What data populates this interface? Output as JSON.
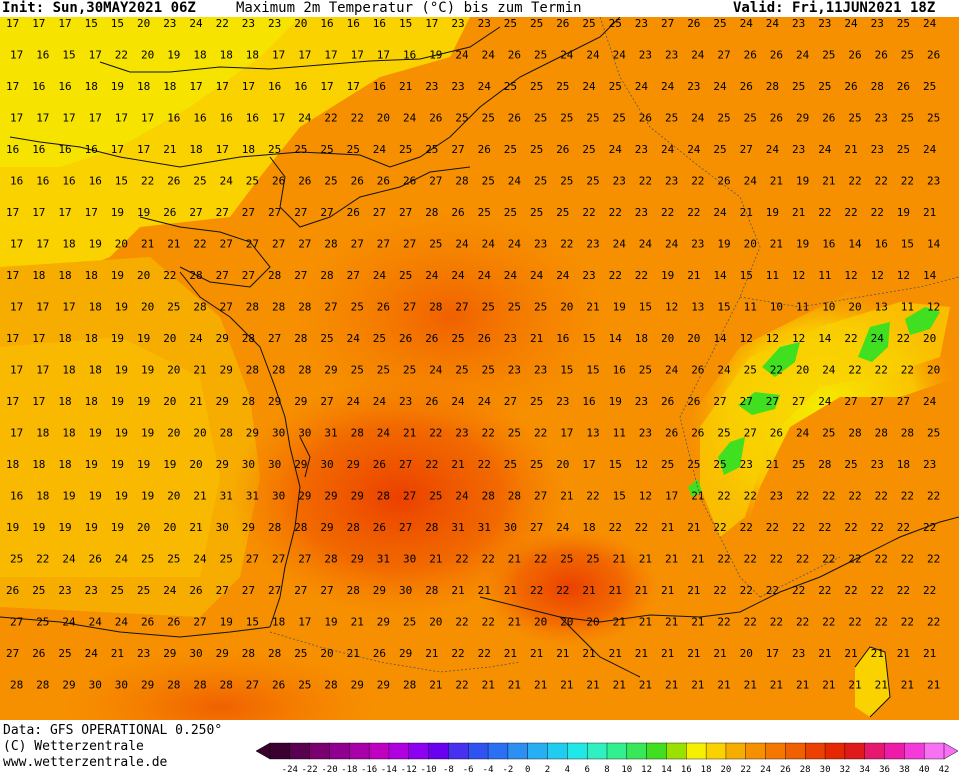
{
  "header": {
    "init": "Init: Sun,30MAY2021 06Z",
    "title": "Maximum 2m Temperatur (°C) bis zum Termin",
    "valid": "Valid: Fri,11JUN2021 18Z"
  },
  "footer": {
    "source": "Data: GFS OPERATIONAL 0.250°",
    "copyright": "(C) Wetterzentrale",
    "url": "www.wetterzentrale.de"
  },
  "legend": {
    "ticks": [
      "-24",
      "-22",
      "-20",
      "-18",
      "-16",
      "-14",
      "-12",
      "-10",
      "-8",
      "-6",
      "-4",
      "-2",
      "0",
      "2",
      "4",
      "6",
      "8",
      "10",
      "12",
      "14",
      "16",
      "18",
      "20",
      "22",
      "24",
      "26",
      "28",
      "30",
      "32",
      "34",
      "36",
      "38",
      "40",
      "42"
    ],
    "colors": [
      "#3a0030",
      "#5a0050",
      "#7a0070",
      "#8f0090",
      "#a800a8",
      "#c000c0",
      "#b000e0",
      "#8e00f0",
      "#6a00f0",
      "#4830f0",
      "#2f52f0",
      "#2a70f2",
      "#2c8ff2",
      "#28aef2",
      "#20ccf0",
      "#20e8e8",
      "#2ef0c0",
      "#30f090",
      "#38e858",
      "#40e020",
      "#9ae000",
      "#f4f000",
      "#fad200",
      "#f7ac00",
      "#f79000",
      "#f47800",
      "#f06000",
      "#eb4000",
      "#e62800",
      "#e01a1a",
      "#e6186e",
      "#ee1aa8",
      "#f43ad8",
      "#f870f4"
    ]
  },
  "map": {
    "rows": [
      [
        "17",
        "17",
        "17",
        "15",
        "15",
        "20",
        "23",
        "24",
        "22",
        "23",
        "23",
        "20",
        "16",
        "16",
        "16",
        "15",
        "17",
        "23",
        "23",
        "25",
        "25",
        "26",
        "25",
        "25",
        "23",
        "27",
        "26",
        "25",
        "24",
        "24",
        "23",
        "23",
        "24",
        "23",
        "25",
        "24"
      ],
      [
        "17",
        "16",
        "15",
        "17",
        "22",
        "20",
        "19",
        "18",
        "18",
        "18",
        "17",
        "17",
        "17",
        "17",
        "17",
        "16",
        "19",
        "24",
        "24",
        "26",
        "25",
        "24",
        "24",
        "24",
        "23",
        "23",
        "24",
        "27",
        "26",
        "26",
        "24",
        "25",
        "26",
        "26",
        "25",
        "26"
      ],
      [
        "17",
        "16",
        "16",
        "18",
        "19",
        "18",
        "18",
        "17",
        "17",
        "17",
        "16",
        "16",
        "17",
        "17",
        "16",
        "21",
        "23",
        "23",
        "24",
        "25",
        "25",
        "25",
        "24",
        "25",
        "24",
        "24",
        "23",
        "24",
        "26",
        "28",
        "25",
        "25",
        "26",
        "28",
        "26",
        "25"
      ],
      [
        "17",
        "17",
        "17",
        "17",
        "17",
        "17",
        "16",
        "16",
        "16",
        "16",
        "17",
        "24",
        "22",
        "22",
        "20",
        "24",
        "26",
        "25",
        "25",
        "26",
        "25",
        "25",
        "25",
        "25",
        "26",
        "25",
        "24",
        "25",
        "25",
        "26",
        "29",
        "26",
        "25",
        "23",
        "25",
        "25"
      ],
      [
        "16",
        "16",
        "16",
        "16",
        "17",
        "17",
        "21",
        "18",
        "17",
        "18",
        "25",
        "25",
        "25",
        "25",
        "24",
        "25",
        "25",
        "27",
        "26",
        "25",
        "25",
        "26",
        "25",
        "24",
        "23",
        "24",
        "24",
        "25",
        "27",
        "24",
        "23",
        "24",
        "21",
        "23",
        "25",
        "24"
      ],
      [
        "16",
        "16",
        "16",
        "16",
        "15",
        "22",
        "26",
        "25",
        "24",
        "25",
        "26",
        "26",
        "25",
        "26",
        "26",
        "26",
        "27",
        "28",
        "25",
        "24",
        "25",
        "25",
        "25",
        "23",
        "22",
        "23",
        "22",
        "26",
        "24",
        "21",
        "19",
        "21",
        "22",
        "22",
        "22",
        "23"
      ],
      [
        "17",
        "17",
        "17",
        "17",
        "19",
        "19",
        "26",
        "27",
        "27",
        "27",
        "27",
        "27",
        "27",
        "26",
        "27",
        "27",
        "28",
        "26",
        "25",
        "25",
        "25",
        "25",
        "22",
        "22",
        "23",
        "22",
        "22",
        "24",
        "21",
        "19",
        "21",
        "22",
        "22",
        "22",
        "19",
        "21"
      ],
      [
        "17",
        "17",
        "18",
        "19",
        "20",
        "21",
        "21",
        "22",
        "27",
        "27",
        "27",
        "27",
        "28",
        "27",
        "27",
        "27",
        "25",
        "24",
        "24",
        "24",
        "23",
        "22",
        "23",
        "24",
        "24",
        "24",
        "23",
        "19",
        "20",
        "21",
        "19",
        "16",
        "14",
        "16",
        "15",
        "14"
      ],
      [
        "17",
        "18",
        "18",
        "18",
        "19",
        "20",
        "22",
        "28",
        "27",
        "27",
        "28",
        "27",
        "28",
        "27",
        "24",
        "25",
        "24",
        "24",
        "24",
        "24",
        "24",
        "24",
        "23",
        "22",
        "22",
        "19",
        "21",
        "14",
        "15",
        "11",
        "12",
        "11",
        "12",
        "12",
        "12",
        "14"
      ],
      [
        "17",
        "17",
        "17",
        "18",
        "19",
        "20",
        "25",
        "28",
        "27",
        "28",
        "28",
        "28",
        "27",
        "25",
        "26",
        "27",
        "28",
        "27",
        "25",
        "25",
        "25",
        "20",
        "21",
        "19",
        "15",
        "12",
        "13",
        "15",
        "11",
        "10",
        "11",
        "10",
        "20",
        "13",
        "11",
        "12"
      ],
      [
        "17",
        "17",
        "18",
        "18",
        "19",
        "19",
        "20",
        "24",
        "29",
        "28",
        "27",
        "28",
        "25",
        "24",
        "25",
        "26",
        "26",
        "25",
        "26",
        "23",
        "21",
        "16",
        "15",
        "14",
        "18",
        "20",
        "20",
        "14",
        "12",
        "12",
        "12",
        "14",
        "22",
        "24",
        "22",
        "20"
      ],
      [
        "17",
        "17",
        "18",
        "18",
        "19",
        "19",
        "20",
        "21",
        "29",
        "28",
        "28",
        "28",
        "29",
        "25",
        "25",
        "25",
        "24",
        "25",
        "25",
        "23",
        "23",
        "15",
        "15",
        "16",
        "25",
        "24",
        "26",
        "24",
        "25",
        "22",
        "20",
        "24",
        "22",
        "22",
        "22",
        "20"
      ],
      [
        "17",
        "17",
        "18",
        "18",
        "19",
        "19",
        "20",
        "21",
        "29",
        "28",
        "29",
        "29",
        "27",
        "24",
        "24",
        "23",
        "26",
        "24",
        "24",
        "27",
        "25",
        "23",
        "16",
        "19",
        "23",
        "26",
        "26",
        "27",
        "27",
        "27",
        "27",
        "24",
        "27",
        "27",
        "27",
        "24"
      ],
      [
        "17",
        "18",
        "18",
        "19",
        "19",
        "19",
        "20",
        "20",
        "28",
        "29",
        "30",
        "30",
        "31",
        "28",
        "24",
        "21",
        "22",
        "23",
        "22",
        "25",
        "22",
        "17",
        "13",
        "11",
        "23",
        "26",
        "26",
        "25",
        "27",
        "26",
        "24",
        "25",
        "28",
        "28",
        "28",
        "25"
      ],
      [
        "18",
        "18",
        "18",
        "19",
        "19",
        "19",
        "19",
        "20",
        "29",
        "30",
        "30",
        "29",
        "30",
        "29",
        "26",
        "27",
        "22",
        "21",
        "22",
        "25",
        "25",
        "20",
        "17",
        "15",
        "12",
        "25",
        "25",
        "25",
        "23",
        "21",
        "25",
        "28",
        "25",
        "23",
        "18",
        "23"
      ],
      [
        "16",
        "18",
        "19",
        "19",
        "19",
        "19",
        "20",
        "21",
        "31",
        "31",
        "30",
        "29",
        "29",
        "29",
        "28",
        "27",
        "25",
        "24",
        "28",
        "28",
        "27",
        "21",
        "22",
        "15",
        "12",
        "17",
        "21",
        "22",
        "22",
        "23",
        "22",
        "22",
        "22",
        "22",
        "22",
        "22"
      ],
      [
        "19",
        "19",
        "19",
        "19",
        "19",
        "20",
        "20",
        "21",
        "30",
        "29",
        "28",
        "28",
        "29",
        "28",
        "26",
        "27",
        "28",
        "31",
        "31",
        "30",
        "27",
        "24",
        "18",
        "22",
        "22",
        "21",
        "21",
        "22",
        "22",
        "22",
        "22",
        "22",
        "22",
        "22",
        "22",
        "22"
      ],
      [
        "25",
        "22",
        "24",
        "26",
        "24",
        "25",
        "25",
        "24",
        "25",
        "27",
        "27",
        "27",
        "28",
        "29",
        "31",
        "30",
        "21",
        "22",
        "22",
        "21",
        "22",
        "25",
        "25",
        "21",
        "21",
        "21",
        "21",
        "22",
        "22",
        "22",
        "22",
        "22",
        "22",
        "22",
        "22",
        "22"
      ],
      [
        "26",
        "25",
        "23",
        "23",
        "25",
        "25",
        "24",
        "26",
        "27",
        "27",
        "27",
        "27",
        "27",
        "28",
        "29",
        "30",
        "28",
        "21",
        "21",
        "21",
        "22",
        "22",
        "21",
        "21",
        "21",
        "21",
        "21",
        "22",
        "22",
        "22",
        "22",
        "22",
        "22",
        "22",
        "22",
        "22"
      ],
      [
        "27",
        "25",
        "24",
        "24",
        "24",
        "26",
        "26",
        "27",
        "19",
        "15",
        "18",
        "17",
        "19",
        "21",
        "29",
        "25",
        "20",
        "22",
        "22",
        "21",
        "20",
        "20",
        "20",
        "21",
        "21",
        "21",
        "21",
        "22",
        "22",
        "22",
        "22",
        "22",
        "22",
        "22",
        "22",
        "22"
      ],
      [
        "27",
        "26",
        "25",
        "24",
        "21",
        "23",
        "29",
        "30",
        "29",
        "28",
        "28",
        "25",
        "20",
        "21",
        "26",
        "29",
        "21",
        "22",
        "22",
        "21",
        "21",
        "21",
        "21",
        "21",
        "21",
        "21",
        "21",
        "21",
        "20",
        "17",
        "23",
        "21",
        "21",
        "21",
        "21",
        "21"
      ],
      [
        "28",
        "28",
        "29",
        "30",
        "30",
        "29",
        "28",
        "28",
        "28",
        "27",
        "26",
        "25",
        "28",
        "29",
        "29",
        "28",
        "21",
        "22",
        "21",
        "21",
        "21",
        "21",
        "21",
        "21",
        "21",
        "21",
        "21",
        "21",
        "21",
        "21",
        "21",
        "21",
        "21",
        "21",
        "21",
        "21"
      ]
    ]
  }
}
